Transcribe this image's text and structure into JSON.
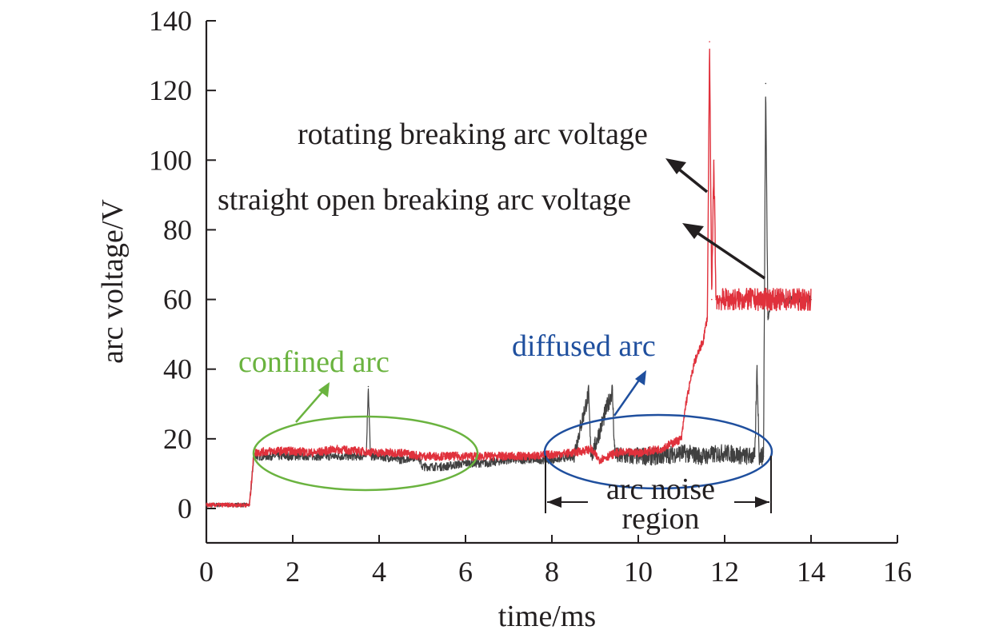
{
  "colors": {
    "rotating": "#e0313c",
    "straight": "#404040",
    "confined": "#6ab33f",
    "diffused": "#1f4f9e",
    "axis": "#231f20",
    "annotation": "#231f20"
  },
  "chart_data": {
    "type": "line",
    "title": "",
    "xlabel": "time/ms",
    "ylabel": "arc voltage/V",
    "xlim": [
      0,
      16
    ],
    "ylim": [
      -10,
      140
    ],
    "xticks": [
      "0",
      "2",
      "4",
      "6",
      "8",
      "10",
      "12",
      "14",
      "16"
    ],
    "yticks": [
      "0",
      "20",
      "40",
      "60",
      "80",
      "100",
      "120",
      "140"
    ],
    "grid": false,
    "legend": "none",
    "series": [
      {
        "key": "rotating",
        "name": "rotating breaking arc voltage",
        "color": "#e0313c",
        "x": [
          0,
          1.0,
          1.1,
          1.5,
          2.0,
          2.5,
          3.0,
          3.5,
          4.0,
          4.5,
          5.0,
          5.5,
          6.0,
          6.5,
          7.0,
          7.5,
          8.0,
          8.5,
          8.9,
          9.1,
          9.5,
          10.0,
          10.5,
          11.0,
          11.1,
          11.3,
          11.5,
          11.6,
          11.65,
          11.7,
          11.75,
          11.8,
          12.0,
          12.5,
          13.0,
          13.5,
          14.0
        ],
        "y": [
          1,
          1,
          16,
          16.5,
          16.5,
          16,
          17,
          16.5,
          16,
          16,
          15,
          15,
          15,
          15,
          15,
          15,
          15.5,
          16,
          17,
          14,
          16,
          16,
          17,
          20,
          30,
          42,
          48,
          55,
          134,
          60,
          100,
          60,
          60,
          60,
          60,
          60,
          60
        ]
      },
      {
        "key": "straight",
        "name": "straight open breaking arc voltage",
        "color": "#404040",
        "x": [
          0,
          1.0,
          1.1,
          1.5,
          2.0,
          2.5,
          3.0,
          3.5,
          3.7,
          3.75,
          3.8,
          4.0,
          4.5,
          4.9,
          5.0,
          5.5,
          6.0,
          6.5,
          7.0,
          7.5,
          8.0,
          8.5,
          8.85,
          8.9,
          8.95,
          9.4,
          9.45,
          9.5,
          10.0,
          10.5,
          11.0,
          11.5,
          12.0,
          12.5,
          12.7,
          12.75,
          12.8,
          12.9,
          12.95,
          13.0,
          13.1,
          13.5,
          14.0
        ],
        "y": [
          1,
          1,
          15,
          15,
          15,
          15,
          15,
          15,
          15,
          35,
          15,
          15,
          14,
          15,
          12,
          12,
          13,
          13,
          14,
          14,
          14,
          15,
          33,
          16,
          16,
          34,
          17,
          15,
          15,
          15,
          16,
          15,
          16,
          15,
          15,
          41,
          15,
          15,
          122,
          55,
          60,
          60,
          60
        ]
      }
    ],
    "annotations": {
      "rotating_label": "rotating breaking arc voltage",
      "straight_label": "straight open breaking arc voltage",
      "confined": "confined  arc",
      "diffused": "diffused  arc",
      "noise_line1": "arc noise",
      "noise_line2": "region"
    }
  }
}
